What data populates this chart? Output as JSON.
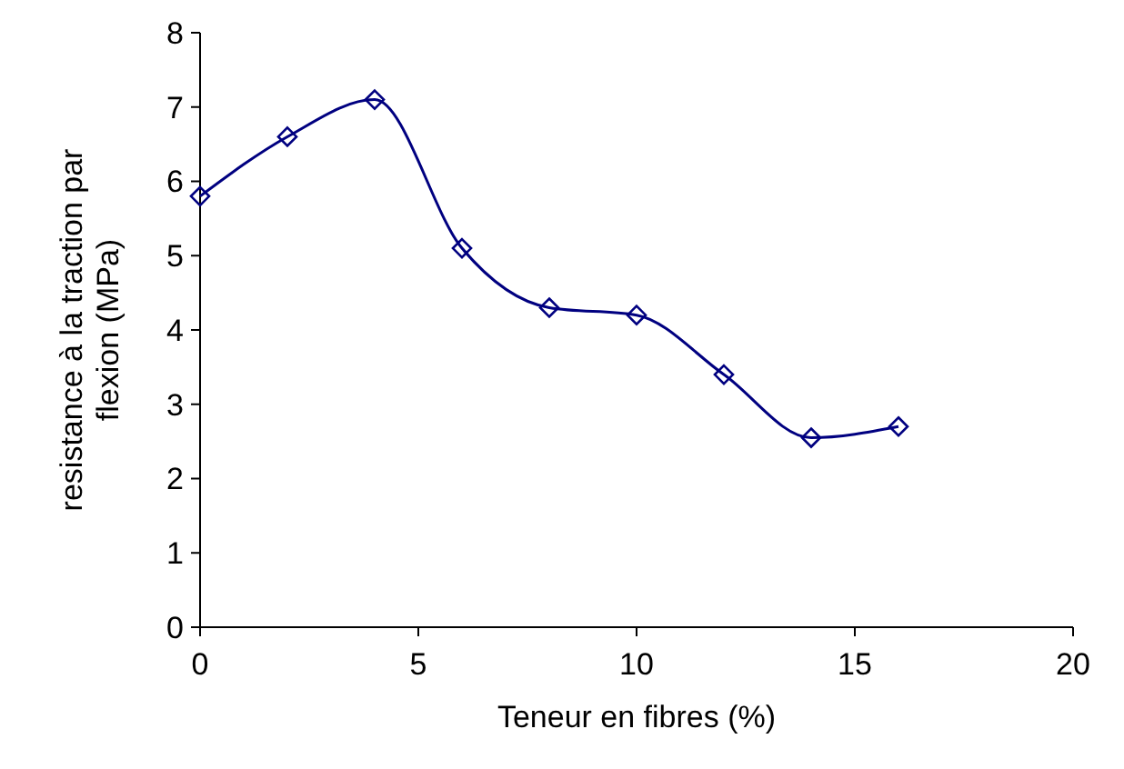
{
  "chart_data": {
    "type": "line",
    "xlabel": "Teneur en fibres (%)",
    "ylabel": "resistance à la traction par\nflexion (MPa)",
    "x": [
      0,
      2,
      4,
      6,
      8,
      10,
      12,
      14,
      16
    ],
    "series": [
      {
        "color": "#000080",
        "values": [
          5.8,
          6.6,
          7.1,
          5.1,
          4.3,
          4.2,
          3.4,
          2.55,
          2.7
        ]
      }
    ],
    "xlim": [
      0,
      20
    ],
    "xticks": [
      0,
      5,
      10,
      15,
      20
    ],
    "ylim": [
      0,
      8
    ],
    "yticks": [
      0,
      1,
      2,
      3,
      4,
      5,
      6,
      7,
      8
    ],
    "marker": "diamond",
    "line_style": "solid",
    "grid": false
  }
}
